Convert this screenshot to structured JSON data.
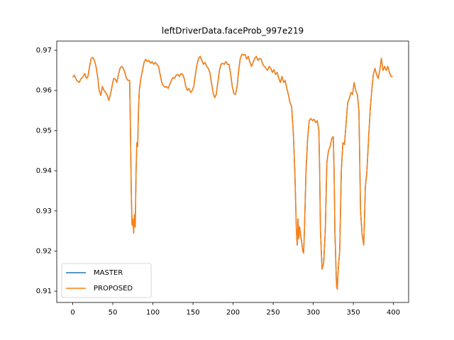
{
  "chart_data": {
    "type": "line",
    "title": "leftDriverData.faceProb_997e219",
    "x": [
      0,
      2,
      5,
      8,
      10,
      13,
      15,
      17,
      19,
      21,
      23,
      25,
      27,
      29,
      31,
      33,
      35,
      37,
      39,
      41,
      43,
      45,
      47,
      49,
      51,
      53,
      55,
      57,
      59,
      61,
      63,
      65,
      67,
      69,
      71,
      72,
      73,
      74,
      75,
      76,
      77,
      78,
      79,
      80,
      81,
      82,
      83,
      85,
      87,
      89,
      91,
      93,
      95,
      97,
      99,
      101,
      103,
      105,
      107,
      109,
      111,
      113,
      115,
      117,
      119,
      121,
      123,
      125,
      127,
      129,
      131,
      133,
      135,
      137,
      139,
      141,
      143,
      145,
      147,
      149,
      151,
      153,
      155,
      157,
      159,
      161,
      163,
      165,
      167,
      169,
      171,
      173,
      175,
      177,
      179,
      181,
      183,
      185,
      187,
      189,
      191,
      193,
      195,
      197,
      199,
      201,
      203,
      205,
      207,
      209,
      211,
      213,
      215,
      217,
      219,
      221,
      223,
      225,
      227,
      229,
      231,
      233,
      235,
      237,
      239,
      241,
      243,
      245,
      247,
      249,
      251,
      253,
      255,
      257,
      259,
      261,
      263,
      265,
      267,
      269,
      271,
      273,
      275,
      277,
      279,
      280,
      281,
      282,
      283,
      285,
      287,
      288,
      289,
      291,
      293,
      295,
      297,
      299,
      301,
      303,
      305,
      307,
      308,
      309,
      311,
      313,
      315,
      317,
      319,
      321,
      323,
      325,
      326,
      327,
      329,
      330,
      331,
      333,
      335,
      337,
      339,
      341,
      343,
      345,
      347,
      349,
      351,
      353,
      355,
      357,
      359,
      361,
      363,
      365,
      367,
      369,
      371,
      373,
      375,
      377,
      379,
      381,
      383,
      385,
      387,
      389,
      391,
      393,
      395,
      397,
      399
    ],
    "series": [
      {
        "name": "MASTER",
        "color": "#1f77b4",
        "values": [
          0.9633,
          0.9638,
          0.9625,
          0.962,
          0.9628,
          0.9635,
          0.9642,
          0.963,
          0.9635,
          0.966,
          0.968,
          0.9682,
          0.9675,
          0.966,
          0.9635,
          0.96,
          0.9588,
          0.961,
          0.96,
          0.9595,
          0.9588,
          0.9575,
          0.959,
          0.961,
          0.963,
          0.9628,
          0.962,
          0.964,
          0.9655,
          0.966,
          0.9655,
          0.9645,
          0.963,
          0.9625,
          0.9625,
          0.95,
          0.935,
          0.9265,
          0.928,
          0.9245,
          0.929,
          0.926,
          0.94,
          0.947,
          0.946,
          0.955,
          0.96,
          0.963,
          0.965,
          0.967,
          0.9678,
          0.9672,
          0.9675,
          0.9668,
          0.9672,
          0.9665,
          0.967,
          0.9665,
          0.966,
          0.964,
          0.962,
          0.9612,
          0.9608,
          0.961,
          0.9605,
          0.9615,
          0.9625,
          0.9632,
          0.963,
          0.9638,
          0.964,
          0.9635,
          0.9642,
          0.964,
          0.963,
          0.961,
          0.96,
          0.9605,
          0.9595,
          0.96,
          0.961,
          0.964,
          0.9665,
          0.968,
          0.9685,
          0.9675,
          0.9665,
          0.967,
          0.966,
          0.9655,
          0.9645,
          0.962,
          0.9595,
          0.9582,
          0.959,
          0.962,
          0.965,
          0.9665,
          0.9668,
          0.9665,
          0.9672,
          0.9665,
          0.9665,
          0.964,
          0.961,
          0.9592,
          0.959,
          0.961,
          0.965,
          0.968,
          0.969,
          0.9688,
          0.969,
          0.9678,
          0.9685,
          0.967,
          0.966,
          0.967,
          0.968,
          0.9685,
          0.9675,
          0.968,
          0.9678,
          0.9665,
          0.966,
          0.9655,
          0.965,
          0.966,
          0.9655,
          0.9645,
          0.9652,
          0.964,
          0.9645,
          0.963,
          0.962,
          0.9635,
          0.962,
          0.9625,
          0.9605,
          0.959,
          0.957,
          0.956,
          0.95,
          0.94,
          0.925,
          0.9215,
          0.928,
          0.923,
          0.926,
          0.923,
          0.92,
          0.9195,
          0.925,
          0.94,
          0.948,
          0.9525,
          0.953,
          0.9525,
          0.9528,
          0.952,
          0.9525,
          0.95,
          0.94,
          0.925,
          0.9155,
          0.917,
          0.925,
          0.942,
          0.945,
          0.946,
          0.948,
          0.9485,
          0.94,
          0.925,
          0.9115,
          0.9105,
          0.915,
          0.92,
          0.94,
          0.947,
          0.9465,
          0.952,
          0.957,
          0.958,
          0.9595,
          0.959,
          0.962,
          0.96,
          0.959,
          0.955,
          0.93,
          0.924,
          0.9215,
          0.936,
          0.94,
          0.948,
          0.955,
          0.96,
          0.964,
          0.9655,
          0.964,
          0.963,
          0.965,
          0.968,
          0.965,
          0.966,
          0.965,
          0.966,
          0.9645,
          0.9635,
          0.9635
        ]
      },
      {
        "name": "PROPOSED",
        "color": "#ff7f0e",
        "values": [
          0.9633,
          0.9638,
          0.9625,
          0.962,
          0.9628,
          0.9635,
          0.9642,
          0.963,
          0.9635,
          0.966,
          0.968,
          0.9682,
          0.9675,
          0.966,
          0.9635,
          0.96,
          0.9588,
          0.961,
          0.96,
          0.9595,
          0.9588,
          0.9575,
          0.959,
          0.961,
          0.963,
          0.9628,
          0.962,
          0.964,
          0.9655,
          0.966,
          0.9655,
          0.9645,
          0.963,
          0.9625,
          0.9625,
          0.95,
          0.935,
          0.9265,
          0.928,
          0.9245,
          0.929,
          0.926,
          0.94,
          0.947,
          0.946,
          0.955,
          0.96,
          0.963,
          0.965,
          0.967,
          0.9678,
          0.9672,
          0.9675,
          0.9668,
          0.9672,
          0.9665,
          0.967,
          0.9665,
          0.966,
          0.964,
          0.962,
          0.9612,
          0.9608,
          0.961,
          0.9605,
          0.9615,
          0.9625,
          0.9632,
          0.963,
          0.9638,
          0.964,
          0.9635,
          0.9642,
          0.964,
          0.963,
          0.961,
          0.96,
          0.9605,
          0.9595,
          0.96,
          0.961,
          0.964,
          0.9665,
          0.968,
          0.9685,
          0.9675,
          0.9665,
          0.967,
          0.966,
          0.9655,
          0.9645,
          0.962,
          0.9595,
          0.9582,
          0.959,
          0.962,
          0.965,
          0.9665,
          0.9668,
          0.9665,
          0.9672,
          0.9665,
          0.9665,
          0.964,
          0.961,
          0.9592,
          0.959,
          0.961,
          0.965,
          0.968,
          0.969,
          0.9688,
          0.969,
          0.9678,
          0.9685,
          0.967,
          0.966,
          0.967,
          0.968,
          0.9685,
          0.9675,
          0.968,
          0.9678,
          0.9665,
          0.966,
          0.9655,
          0.965,
          0.966,
          0.9655,
          0.9645,
          0.9652,
          0.964,
          0.9645,
          0.963,
          0.962,
          0.9635,
          0.962,
          0.9625,
          0.9605,
          0.959,
          0.957,
          0.956,
          0.95,
          0.94,
          0.925,
          0.9215,
          0.928,
          0.923,
          0.926,
          0.923,
          0.92,
          0.9195,
          0.925,
          0.94,
          0.948,
          0.9525,
          0.953,
          0.9525,
          0.9528,
          0.952,
          0.9525,
          0.95,
          0.94,
          0.925,
          0.9155,
          0.917,
          0.925,
          0.942,
          0.945,
          0.946,
          0.948,
          0.9485,
          0.94,
          0.925,
          0.9115,
          0.9105,
          0.915,
          0.92,
          0.94,
          0.947,
          0.9465,
          0.952,
          0.957,
          0.958,
          0.9595,
          0.959,
          0.962,
          0.96,
          0.959,
          0.955,
          0.93,
          0.924,
          0.9215,
          0.936,
          0.94,
          0.948,
          0.955,
          0.96,
          0.964,
          0.9655,
          0.964,
          0.963,
          0.965,
          0.968,
          0.965,
          0.966,
          0.965,
          0.966,
          0.9645,
          0.9635,
          0.9635
        ]
      }
    ],
    "xlim": [
      -19.95,
      418.95
    ],
    "xticks": [
      0,
      50,
      100,
      150,
      200,
      250,
      300,
      350,
      400
    ],
    "ylim": [
      0.9072,
      0.9723
    ],
    "yticks": [
      0.91,
      0.92,
      0.93,
      0.94,
      0.95,
      0.96,
      0.97
    ],
    "grid": false,
    "legend": "lower left"
  }
}
